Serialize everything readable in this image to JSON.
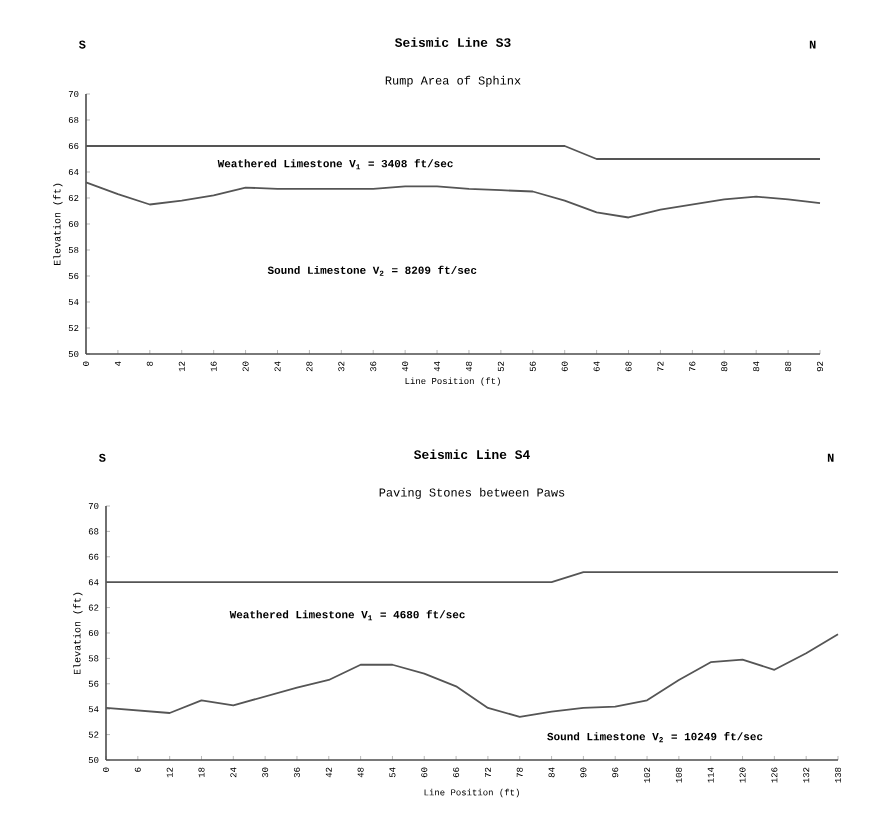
{
  "chart_data": [
    {
      "type": "line",
      "title": "Seismic Line S3",
      "subtitle": "Rump Area of Sphinx",
      "xlabel": "Line Position (ft)",
      "ylabel": "Elevation (ft)",
      "x": [
        0,
        4,
        8,
        12,
        16,
        20,
        24,
        28,
        32,
        36,
        40,
        44,
        48,
        52,
        56,
        60,
        64,
        68,
        72,
        76,
        80,
        84,
        88,
        92
      ],
      "series": [
        {
          "color": "#555555",
          "values": [
            66,
            66,
            66,
            66,
            66,
            66,
            66,
            66,
            66,
            66,
            66,
            66,
            66,
            66,
            66,
            66,
            65,
            65,
            65,
            65,
            65,
            65,
            65,
            65
          ]
        },
        {
          "color": "#555555",
          "values": [
            63.2,
            62.3,
            61.5,
            61.8,
            62.2,
            62.8,
            62.7,
            62.7,
            62.7,
            62.7,
            62.9,
            62.9,
            62.7,
            62.6,
            62.5,
            61.8,
            60.9,
            60.5,
            61.1,
            61.5,
            61.9,
            62.1,
            61.9,
            61.6
          ]
        }
      ],
      "xlim": [
        0,
        92
      ],
      "ylim": [
        50,
        70
      ],
      "xticks": [
        0,
        4,
        8,
        12,
        16,
        20,
        24,
        28,
        32,
        36,
        40,
        44,
        48,
        52,
        56,
        60,
        64,
        68,
        72,
        76,
        80,
        84,
        88,
        92
      ],
      "yticks": [
        50,
        52,
        54,
        56,
        58,
        60,
        62,
        64,
        66,
        68,
        70
      ],
      "annotations": [
        "S",
        "N",
        "Weathered Limestone  V$_{1}$ = 3408 ft/sec",
        "Sound Limestone  V$_{2}$ = 8209 ft/sec"
      ]
    },
    {
      "type": "line",
      "title": "Seismic Line S4",
      "subtitle": "Paving Stones between Paws",
      "xlabel": "Line Position (ft)",
      "ylabel": "Elevation (ft)",
      "x": [
        0,
        6,
        12,
        18,
        24,
        30,
        36,
        42,
        48,
        54,
        60,
        66,
        72,
        78,
        84,
        90,
        96,
        102,
        108,
        114,
        120,
        126,
        132,
        138
      ],
      "series": [
        {
          "color": "#555555",
          "values": [
            64,
            64,
            64,
            64,
            64,
            64,
            64,
            64,
            64,
            64,
            64,
            64,
            64,
            64,
            64,
            64.8,
            64.8,
            64.8,
            64.8,
            64.8,
            64.8,
            64.8,
            64.8,
            64.8
          ]
        },
        {
          "color": "#555555",
          "values": [
            54.1,
            53.9,
            53.7,
            54.7,
            54.3,
            55.0,
            55.7,
            56.3,
            57.5,
            57.5,
            56.8,
            55.8,
            54.1,
            53.4,
            53.8,
            54.1,
            54.2,
            54.7,
            56.3,
            57.7,
            57.9,
            57.1,
            58.4,
            59.9
          ]
        }
      ],
      "xlim": [
        0,
        138
      ],
      "ylim": [
        50,
        70
      ],
      "xticks": [
        0,
        6,
        12,
        18,
        24,
        30,
        36,
        42,
        48,
        54,
        60,
        66,
        72,
        78,
        84,
        90,
        96,
        102,
        108,
        114,
        120,
        126,
        132,
        138
      ],
      "yticks": [
        50,
        52,
        54,
        56,
        58,
        60,
        62,
        64,
        66,
        68,
        70
      ],
      "annotations": [
        "S",
        "N",
        "Weathered Limestone  V$_{1}$ = 4680 ft/sec",
        "Sound Limestone  V$_{2}$ = 10249 ft/sec"
      ]
    }
  ]
}
